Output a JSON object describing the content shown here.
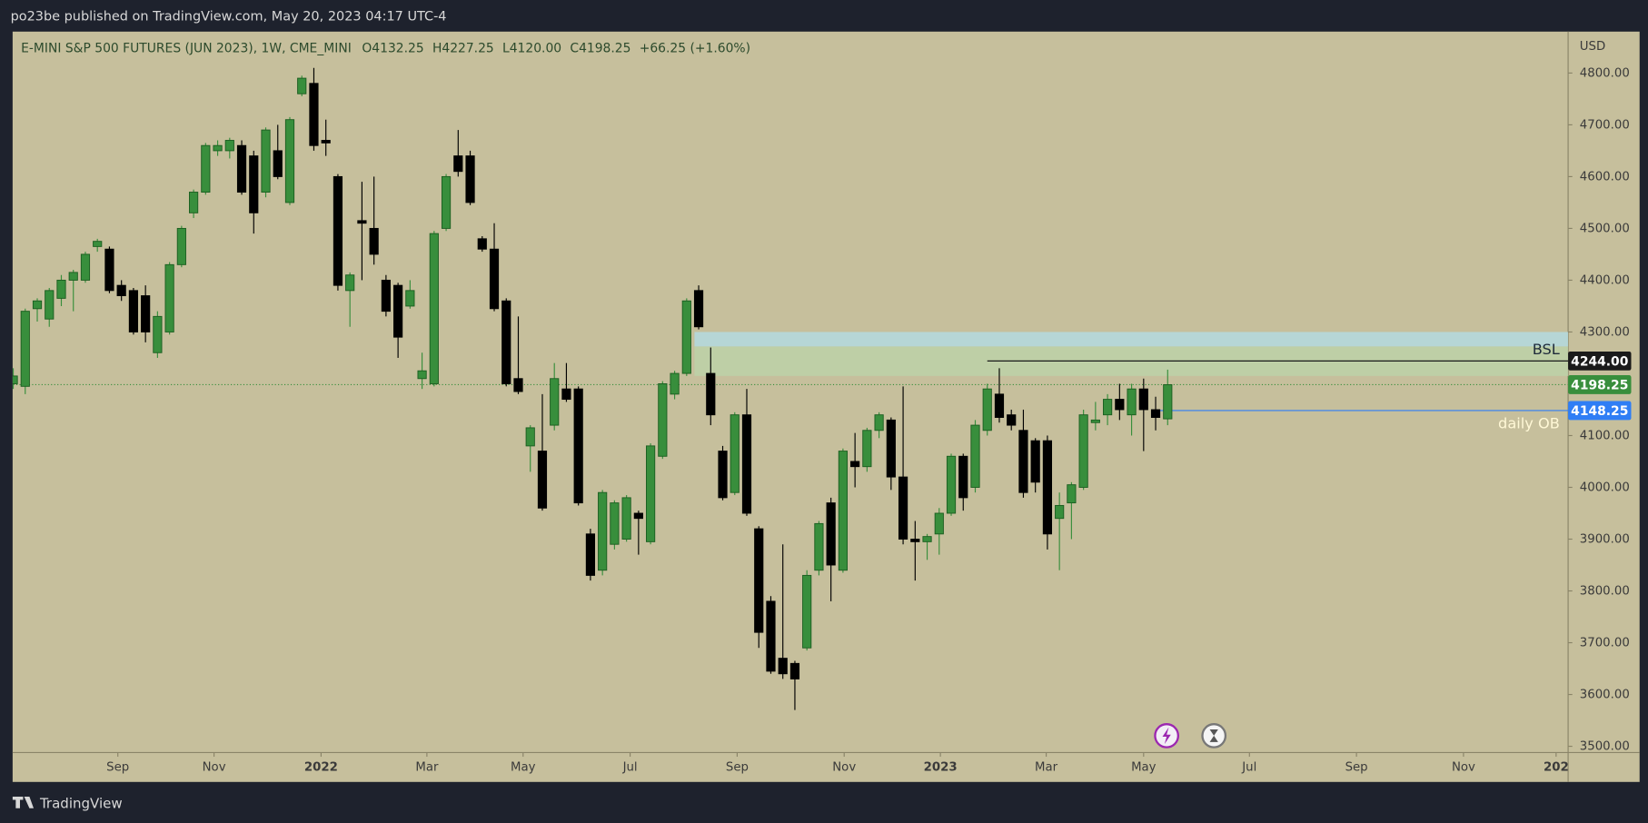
{
  "header": {
    "publisher": "po23be published on TradingView.com, May 20, 2023 04:17 UTC-4"
  },
  "chart_data": {
    "type": "candlestick",
    "legend": {
      "symbol": "E-MINI S&P 500 FUTURES (JUN 2023), 1W, CME_MINI",
      "open": "O4132.25",
      "high": "H4227.25",
      "low": "L4120.00",
      "close": "C4198.25",
      "change": "+66.25 (+1.60%)"
    },
    "currency": "USD",
    "open": [
      4200,
      4195,
      4345,
      4325,
      4365,
      4400,
      4400,
      4465,
      4460,
      4390,
      4380,
      4370,
      4260,
      4300,
      4430,
      4530,
      4570,
      4650,
      4650,
      4660,
      4640,
      4570,
      4650,
      4550,
      4760,
      4780,
      4670,
      4600,
      4380,
      4515,
      4500,
      4400,
      4390,
      4350,
      4210,
      4200,
      4500,
      4640,
      4640,
      4480,
      4460,
      4360,
      4210,
      4080,
      4070,
      4120,
      4190,
      4190,
      3910,
      3840,
      3890,
      3900,
      3950,
      3895,
      4060,
      4180,
      4220,
      4380,
      4220,
      4070,
      3990,
      4140,
      3920,
      3780,
      3670,
      3660,
      3690,
      3840,
      3970,
      3840,
      4050,
      4040,
      4110,
      4130,
      4020,
      3900,
      3895,
      3910,
      3950,
      4060,
      4000,
      4110,
      4180,
      4140,
      4110,
      4090,
      4090,
      3940,
      3970,
      4000,
      4125,
      4140,
      4170,
      4140,
      4190,
      4150,
      4132.25
    ],
    "high": [
      4230,
      4345,
      4365,
      4385,
      4410,
      4420,
      4455,
      4480,
      4465,
      4400,
      4385,
      4390,
      4340,
      4435,
      4505,
      4575,
      4665,
      4670,
      4675,
      4670,
      4650,
      4695,
      4700,
      4715,
      4795,
      4810,
      4710,
      4605,
      4415,
      4590,
      4600,
      4410,
      4395,
      4400,
      4260,
      4495,
      4605,
      4690,
      4650,
      4485,
      4510,
      4365,
      4330,
      4120,
      4180,
      4240,
      4240,
      4195,
      3920,
      3995,
      3975,
      3985,
      3955,
      4085,
      4205,
      4225,
      4365,
      4390,
      4270,
      4080,
      4145,
      4190,
      3925,
      3790,
      3890,
      3665,
      3840,
      3935,
      3980,
      4075,
      4105,
      4115,
      4145,
      4135,
      4195,
      3935,
      3910,
      3960,
      4065,
      4065,
      4130,
      4200,
      4230,
      4150,
      4150,
      4095,
      4100,
      3990,
      4010,
      4150,
      4165,
      4180,
      4200,
      4200,
      4210,
      4175,
      4227.25
    ],
    "low": [
      4190,
      4180,
      4320,
      4310,
      4350,
      4340,
      4395,
      4455,
      4375,
      4360,
      4295,
      4280,
      4250,
      4295,
      4425,
      4520,
      4565,
      4640,
      4635,
      4565,
      4490,
      4560,
      4595,
      4545,
      4755,
      4650,
      4640,
      4380,
      4310,
      4400,
      4430,
      4330,
      4250,
      4345,
      4190,
      4195,
      4495,
      4600,
      4545,
      4455,
      4340,
      4195,
      4180,
      4030,
      3955,
      4110,
      4165,
      3965,
      3820,
      3830,
      3880,
      3895,
      3870,
      3890,
      4055,
      4170,
      4215,
      4305,
      4120,
      3975,
      3985,
      3945,
      3690,
      3640,
      3630,
      3570,
      3685,
      3830,
      3780,
      3835,
      4000,
      4030,
      4095,
      3995,
      3890,
      3820,
      3860,
      3870,
      3945,
      3955,
      3990,
      4100,
      4125,
      4110,
      3980,
      3990,
      3880,
      3840,
      3900,
      3995,
      4110,
      4120,
      4130,
      4100,
      4070,
      4110,
      4120
    ],
    "close": [
      4215,
      4340,
      4360,
      4380,
      4400,
      4415,
      4450,
      4475,
      4380,
      4370,
      4300,
      4300,
      4330,
      4430,
      4500,
      4570,
      4660,
      4660,
      4670,
      4570,
      4530,
      4690,
      4600,
      4710,
      4790,
      4660,
      4665,
      4390,
      4410,
      4510,
      4450,
      4340,
      4290,
      4380,
      4225,
      4490,
      4600,
      4610,
      4550,
      4460,
      4345,
      4200,
      4185,
      4115,
      3960,
      4210,
      4170,
      3970,
      3830,
      3990,
      3970,
      3980,
      3940,
      4080,
      4200,
      4220,
      4360,
      4310,
      4140,
      3980,
      4140,
      3950,
      3720,
      3645,
      3640,
      3630,
      3830,
      3930,
      3850,
      4070,
      4040,
      4110,
      4140,
      4020,
      3900,
      3895,
      3905,
      3950,
      4060,
      3980,
      4120,
      4190,
      4135,
      4120,
      3990,
      4010,
      3910,
      3965,
      4005,
      4140,
      4130,
      4170,
      4150,
      4190,
      4150,
      4135,
      4198.25
    ],
    "up_color": "#388e3c",
    "down_color": "#000000",
    "ylim": [
      3490,
      4880
    ],
    "yticks": [
      {
        "value": 3500,
        "label": "3500.00"
      },
      {
        "value": 3600,
        "label": "3600.00"
      },
      {
        "value": 3700,
        "label": "3700.00"
      },
      {
        "value": 3800,
        "label": "3800.00"
      },
      {
        "value": 3900,
        "label": "3900.00"
      },
      {
        "value": 4000,
        "label": "4000.00"
      },
      {
        "value": 4100,
        "label": "4100.00"
      },
      {
        "value": 4200,
        "label": "4200.00"
      },
      {
        "value": 4300,
        "label": "4300.00"
      },
      {
        "value": 4400,
        "label": "4400.00"
      },
      {
        "value": 4500,
        "label": "4500.00"
      },
      {
        "value": 4600,
        "label": "4600.00"
      },
      {
        "value": 4700,
        "label": "4700.00"
      },
      {
        "value": 4800,
        "label": "4800.00"
      }
    ],
    "xlim": [
      -0.05,
      129.3
    ],
    "xticks": [
      {
        "value": 8.7,
        "label": "Sep"
      },
      {
        "value": 16.7,
        "label": "Nov"
      },
      {
        "value": 25.6,
        "label": "2022"
      },
      {
        "value": 34.4,
        "label": "Mar"
      },
      {
        "value": 42.4,
        "label": "May"
      },
      {
        "value": 51.3,
        "label": "Jul"
      },
      {
        "value": 60.2,
        "label": "Sep"
      },
      {
        "value": 69.1,
        "label": "Nov"
      },
      {
        "value": 77.1,
        "label": "2023"
      },
      {
        "value": 85.9,
        "label": "Mar"
      },
      {
        "value": 94,
        "label": "May"
      },
      {
        "value": 102.8,
        "label": "Jul"
      },
      {
        "value": 111.7,
        "label": "Sep"
      },
      {
        "value": 120.6,
        "label": "Nov"
      },
      {
        "value": 128.3,
        "label": "202"
      }
    ],
    "zones": [
      {
        "from": 4272,
        "to": 4300,
        "start": 57,
        "color": "#b3d9e0"
      },
      {
        "from": 4215,
        "to": 4272,
        "start": 57,
        "color": "#bcd1a8"
      }
    ],
    "levels": [
      {
        "value": 4244,
        "label": "4244.00",
        "start": 81,
        "color": "#1a1a1a"
      },
      {
        "value": 4198.25,
        "label": "4198.25",
        "start": 0,
        "color": "#388e3c"
      },
      {
        "value": 4148.25,
        "label": "4148.25",
        "start": 95,
        "color": "#2f7ef5"
      }
    ],
    "annotations": [
      {
        "text": "BSL",
        "value": 4265,
        "color": "#1e2a3a"
      },
      {
        "text": "daily OB",
        "value": 4122,
        "color": "#fff8d6"
      }
    ]
  },
  "footer": {
    "brand": "TradingView"
  }
}
